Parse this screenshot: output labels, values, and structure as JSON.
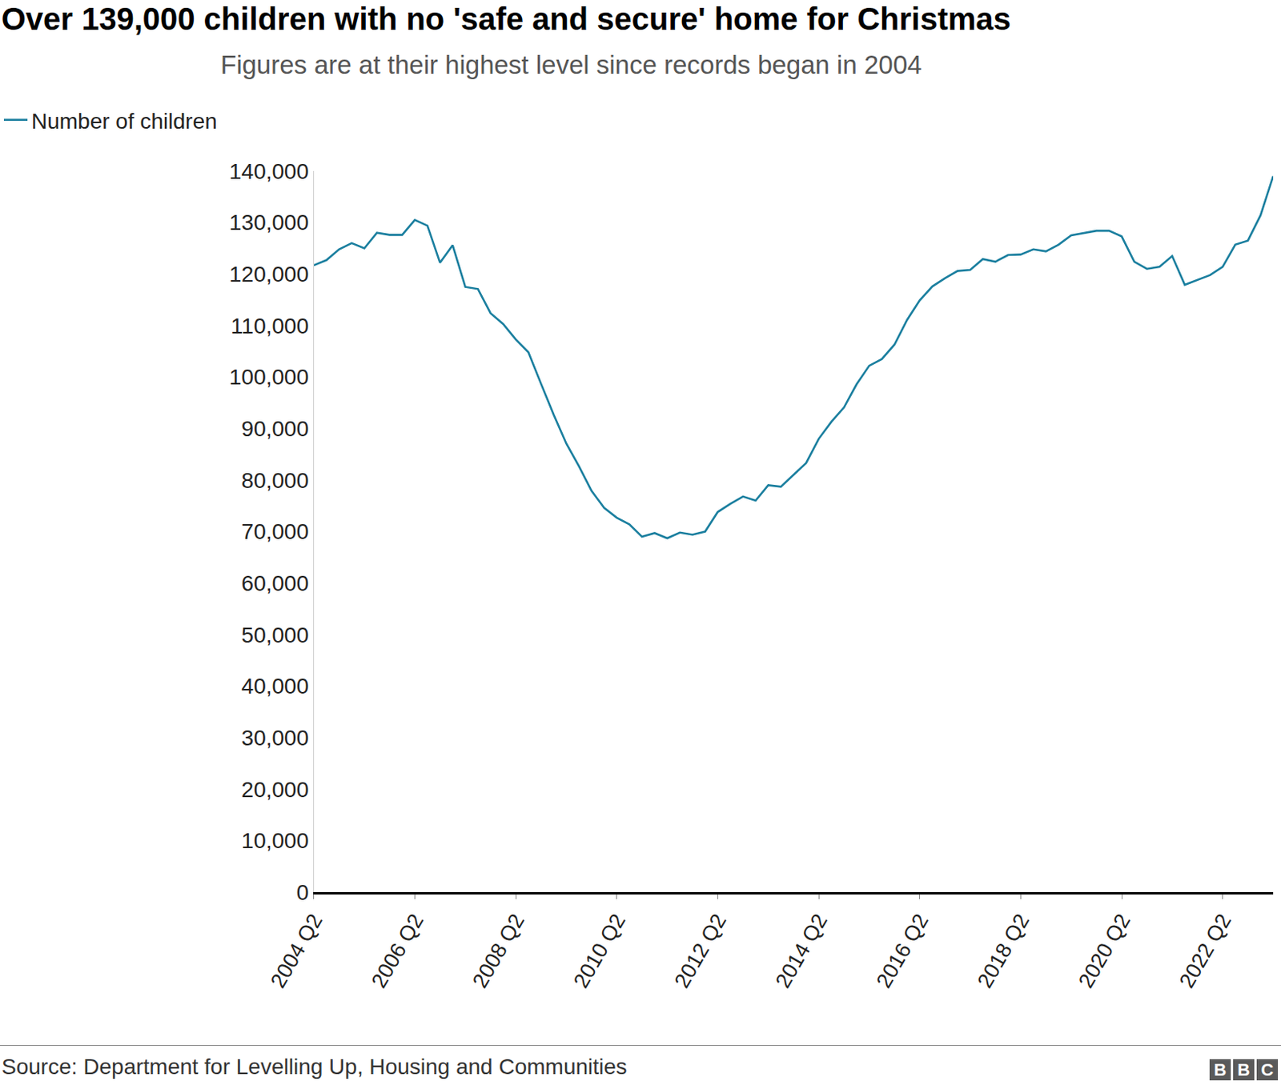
{
  "chart_data": {
    "type": "line",
    "title": "Over 139,000 children with no 'safe and secure' home for Christmas",
    "subtitle": "Figures are at their highest level since records began in 2004",
    "source": "Source: Department for Levelling Up, Housing and Communities",
    "logo": "BBC",
    "categories": [
      "2004 Q2",
      null,
      null,
      null,
      null,
      null,
      null,
      null,
      "2006 Q2",
      null,
      null,
      null,
      null,
      null,
      null,
      null,
      "2008 Q2",
      null,
      null,
      null,
      null,
      null,
      null,
      null,
      "2010 Q2",
      null,
      null,
      null,
      null,
      null,
      null,
      null,
      "2012 Q2",
      null,
      null,
      null,
      null,
      null,
      null,
      null,
      "2014 Q2",
      null,
      null,
      null,
      null,
      null,
      null,
      null,
      "2016 Q2",
      null,
      null,
      null,
      null,
      null,
      null,
      null,
      "2018 Q2",
      null,
      null,
      null,
      null,
      null,
      null,
      null,
      "2020 Q2",
      null,
      null,
      null,
      null,
      null,
      null,
      null,
      "2022 Q2",
      null,
      null,
      null,
      null
    ],
    "series": [
      {
        "name": "Number of children",
        "color": "#1b7f9f",
        "values": [
          121700,
          122700,
          124800,
          126000,
          125000,
          128000,
          127600,
          127600,
          130500,
          129400,
          122200,
          125600,
          117500,
          117100,
          112400,
          110300,
          107300,
          104800,
          98700,
          92700,
          87100,
          82700,
          77900,
          74600,
          72700,
          71400,
          69000,
          69700,
          68700,
          69800,
          69400,
          70000,
          73800,
          75400,
          76800,
          76000,
          79000,
          78700,
          81000,
          83300,
          88000,
          91300,
          94100,
          98600,
          102200,
          103500,
          106300,
          111100,
          114900,
          117600,
          119200,
          120600,
          120800,
          122900,
          122400,
          123700,
          123800,
          124800,
          124400,
          125700,
          127500,
          127900,
          128400,
          128400,
          127300,
          122400,
          121000,
          121400,
          123500,
          117900,
          118900,
          119800,
          121400,
          125700,
          126500,
          131400,
          139000
        ]
      }
    ],
    "ylim": [
      0,
      140000
    ],
    "yticks": [
      0,
      {
        "value": 10000,
        "label": "10,000"
      },
      {
        "value": 20000,
        "label": "20,000"
      },
      {
        "value": 30000,
        "label": "30,000"
      },
      {
        "value": 40000,
        "label": "40,000"
      },
      {
        "value": 50000,
        "label": "50,000"
      },
      {
        "value": 60000,
        "label": "60,000"
      },
      {
        "value": 70000,
        "label": "70,000"
      },
      {
        "value": 80000,
        "label": "80,000"
      },
      {
        "value": 90000,
        "label": "90,000"
      },
      {
        "value": 100000,
        "label": "100,000"
      },
      {
        "value": 110000,
        "label": "110,000"
      },
      {
        "value": 120000,
        "label": "120,000"
      },
      {
        "value": 130000,
        "label": "130,000"
      },
      {
        "value": 140000,
        "label": "140,000"
      }
    ],
    "grid": false,
    "legend": "top-left"
  }
}
